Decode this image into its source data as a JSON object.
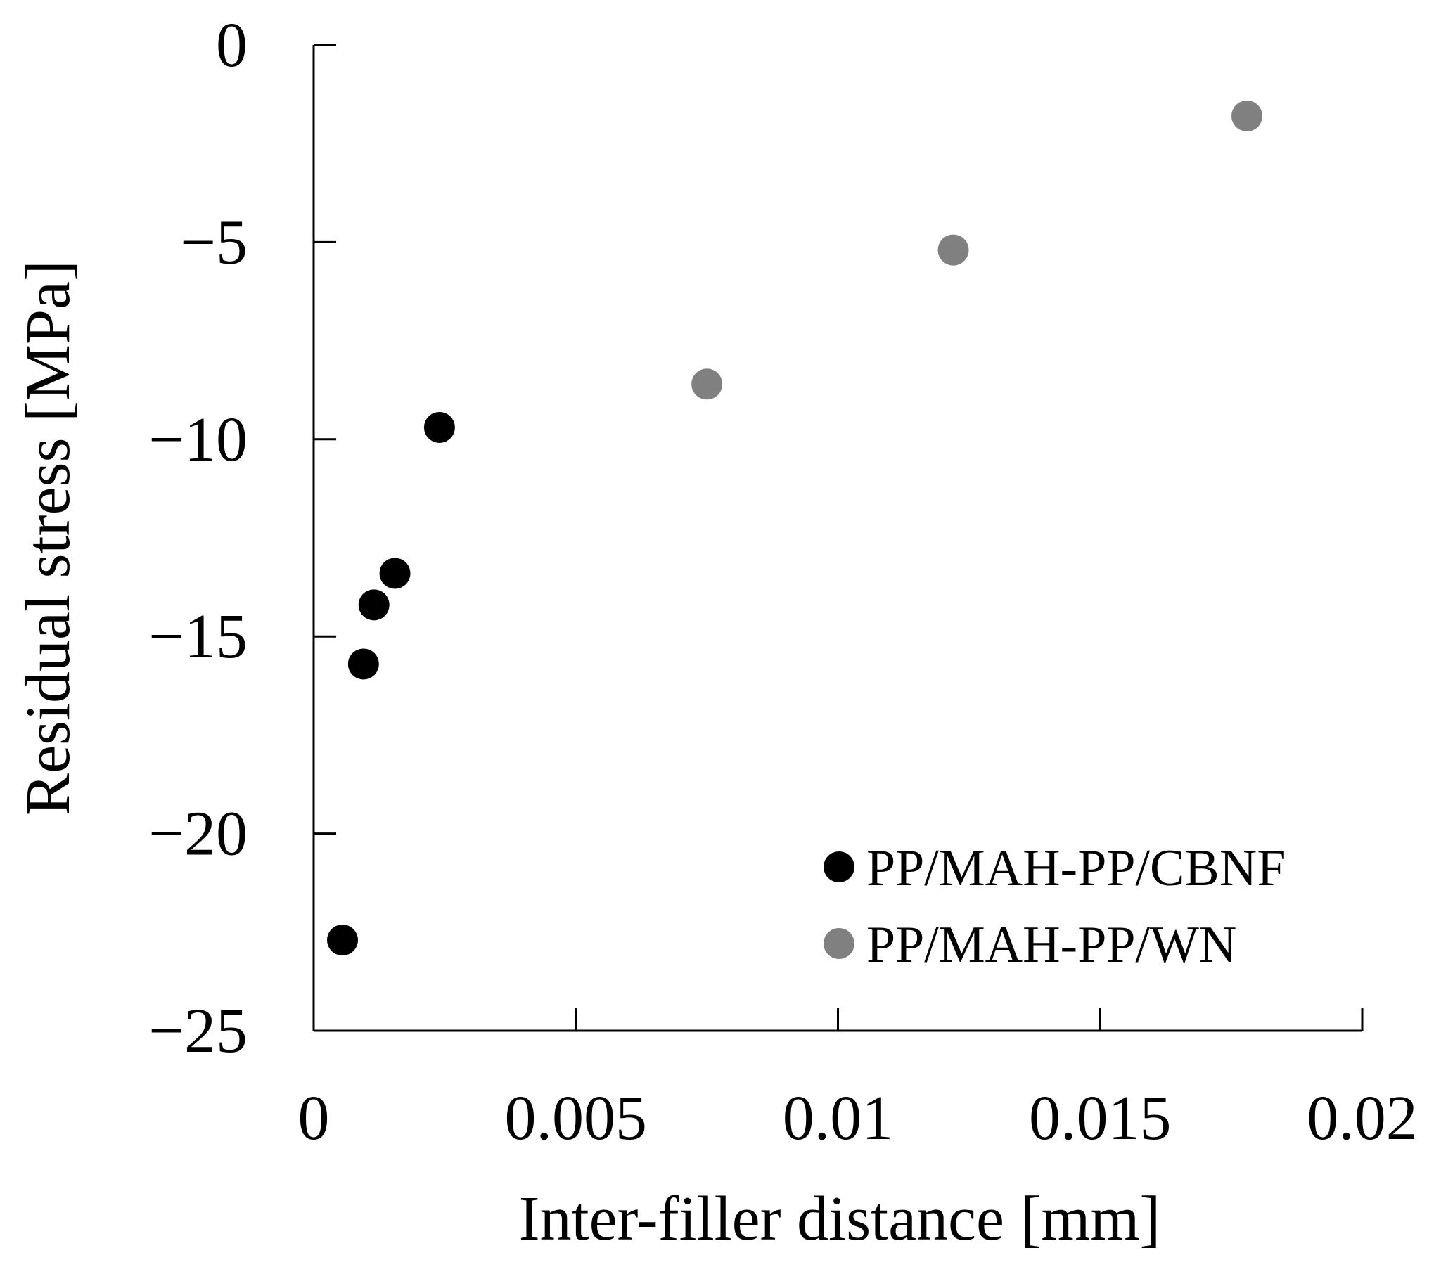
{
  "chart_data": {
    "type": "scatter",
    "title": "",
    "xlabel": "Inter-filler distance [mm]",
    "ylabel": "Residual stress [MPa]",
    "xlim": [
      0,
      0.02
    ],
    "ylim": [
      -25,
      0
    ],
    "x_ticks": [
      {
        "value": 0,
        "label": "0"
      },
      {
        "value": 0.005,
        "label": "0.005"
      },
      {
        "value": 0.01,
        "label": "0.01"
      },
      {
        "value": 0.015,
        "label": "0.015"
      },
      {
        "value": 0.02,
        "label": "0.02"
      }
    ],
    "y_ticks": [
      {
        "value": 0,
        "label": "0"
      },
      {
        "value": -5,
        "label": "−5"
      },
      {
        "value": -10,
        "label": "−10"
      },
      {
        "value": -15,
        "label": "−15"
      },
      {
        "value": -20,
        "label": "−20"
      },
      {
        "value": -25,
        "label": "−25"
      }
    ],
    "grid": false,
    "legend_position": "bottom-right",
    "series": [
      {
        "name": "PP/MAH-PP/CBNF",
        "color": "#000000",
        "points": [
          {
            "x": 0.00055,
            "y": -22.7
          },
          {
            "x": 0.00095,
            "y": -15.7
          },
          {
            "x": 0.00115,
            "y": -14.2
          },
          {
            "x": 0.00155,
            "y": -13.4
          },
          {
            "x": 0.0024,
            "y": -9.7
          }
        ]
      },
      {
        "name": "PP/MAH-PP/WN",
        "color": "#808080",
        "points": [
          {
            "x": 0.0075,
            "y": -8.6
          },
          {
            "x": 0.0122,
            "y": -5.2
          },
          {
            "x": 0.0178,
            "y": -1.8
          }
        ]
      }
    ]
  }
}
